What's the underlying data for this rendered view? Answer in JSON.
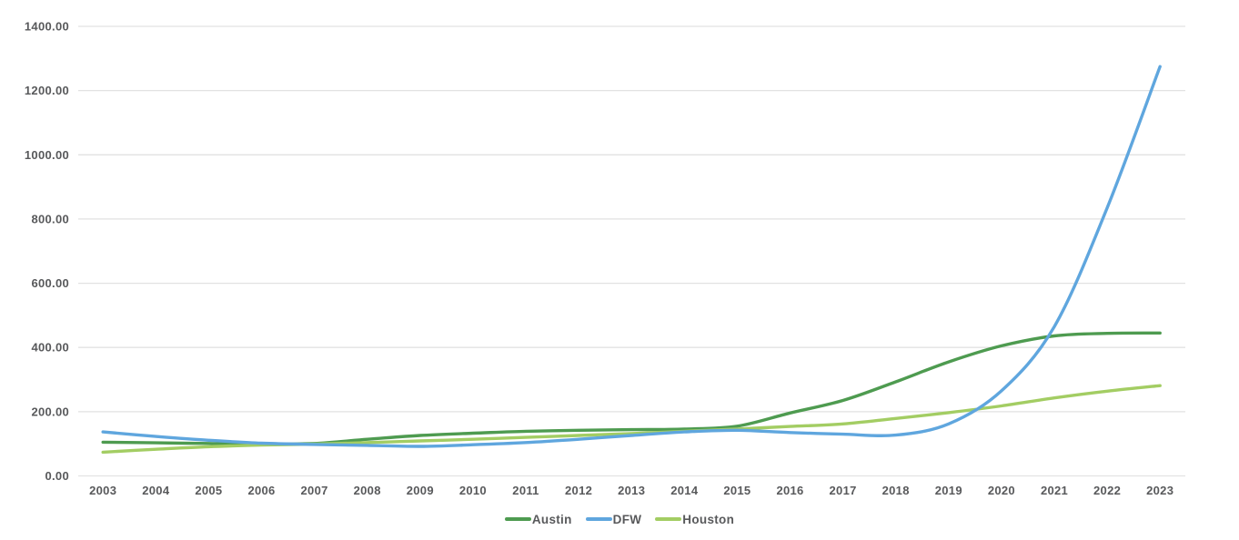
{
  "chart_data": {
    "type": "line",
    "title": "",
    "xlabel": "",
    "ylabel": "",
    "smooth": true,
    "grid": "horizontal-only",
    "x": [
      2003,
      2004,
      2005,
      2006,
      2007,
      2008,
      2009,
      2010,
      2011,
      2012,
      2013,
      2014,
      2015,
      2016,
      2017,
      2018,
      2019,
      2020,
      2021,
      2022,
      2023
    ],
    "series": [
      {
        "name": "Austin",
        "color": "#4E9B50",
        "values": [
          105,
          103,
          101,
          99,
          101,
          114,
          126,
          133,
          139,
          142,
          144,
          146,
          155,
          196,
          235,
          293,
          355,
          405,
          436,
          444,
          445
        ]
      },
      {
        "name": "DFW",
        "color": "#5FA6DE",
        "values": [
          137,
          123,
          111,
          102,
          98,
          95,
          92,
          97,
          104,
          114,
          126,
          137,
          142,
          135,
          130,
          127,
          162,
          265,
          465,
          835,
          1275
        ]
      },
      {
        "name": "Houston",
        "color": "#A3CD63",
        "values": [
          74,
          83,
          91,
          96,
          99,
          104,
          109,
          114,
          120,
          126,
          132,
          139,
          146,
          154,
          162,
          179,
          197,
          218,
          243,
          264,
          281
        ]
      }
    ],
    "y_axis": {
      "min": 0,
      "max": 1400,
      "tick_step": 200,
      "tick_labels": [
        "0.00",
        "200.00",
        "400.00",
        "600.00",
        "800.00",
        "1000.00",
        "1200.00",
        "1400.00"
      ]
    },
    "x_axis": {
      "tick_labels": [
        "2003",
        "2004",
        "2005",
        "2006",
        "2007",
        "2008",
        "2009",
        "2010",
        "2011",
        "2012",
        "2013",
        "2014",
        "2015",
        "2016",
        "2017",
        "2018",
        "2019",
        "2020",
        "2021",
        "2022",
        "2023"
      ]
    },
    "legend": {
      "position": "bottom",
      "entries": [
        "Austin",
        "DFW",
        "Houston"
      ]
    }
  },
  "styles": {
    "background": "#FFFFFF",
    "gridline_color": "#E2E2E2",
    "axis_label_color": "#58595B",
    "legend_label_color": "#58595B"
  }
}
